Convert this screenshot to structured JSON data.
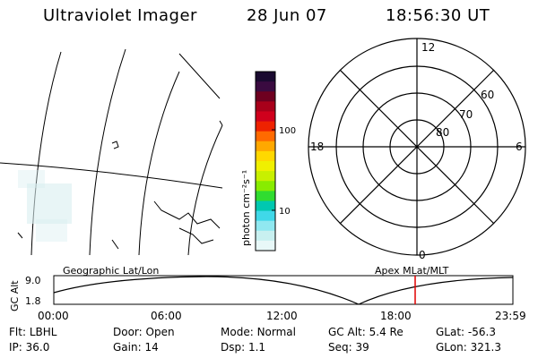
{
  "header": {
    "instrument": "Ultraviolet Imager",
    "date": "28 Jun 07",
    "time": "18:56:30 UT"
  },
  "colorbar": {
    "unit_label": "photon cm⁻²s⁻¹",
    "tick_labels": [
      "100",
      "10"
    ],
    "colors": [
      "#1a0a30",
      "#3a0b40",
      "#6e0020",
      "#a8001a",
      "#d0001c",
      "#ee2200",
      "#ff6a00",
      "#ffa800",
      "#ffd800",
      "#f0f000",
      "#c8f000",
      "#88ec00",
      "#30dc30",
      "#00c8b0",
      "#40d8e8",
      "#90e8f0",
      "#c8f0f0",
      "#e8f8f8"
    ]
  },
  "polar_plot": {
    "mlt_labels": {
      "top": "12",
      "left": "18",
      "right": "6",
      "bottom": "0"
    },
    "lat_labels": [
      "60",
      "70",
      "80"
    ]
  },
  "orbit_panel": {
    "ylabel": "GC Alt",
    "y_ticks": [
      "9.0",
      "1.8"
    ],
    "left_label": "Geographic Lat/Lon",
    "right_label": "Apex MLat/MLT",
    "x_ticks": [
      "00:00",
      "06:00",
      "12:00",
      "18:00",
      "23:59"
    ]
  },
  "status": {
    "row1": [
      {
        "label": "Flt:",
        "value": "LBHL"
      },
      {
        "label": "Door:",
        "value": "Open"
      },
      {
        "label": "Mode:",
        "value": "Normal"
      },
      {
        "label": "GC Alt:",
        "value": "5.4 Re"
      },
      {
        "label": "GLat:",
        "value": "-56.3"
      }
    ],
    "row2": [
      {
        "label": "IP:",
        "value": "36.0"
      },
      {
        "label": "Gain:",
        "value": "14"
      },
      {
        "label": "Dsp:",
        "value": "1.1"
      },
      {
        "label": "Seq:",
        "value": "39"
      },
      {
        "label": "GLon:",
        "value": "321.3"
      }
    ]
  }
}
